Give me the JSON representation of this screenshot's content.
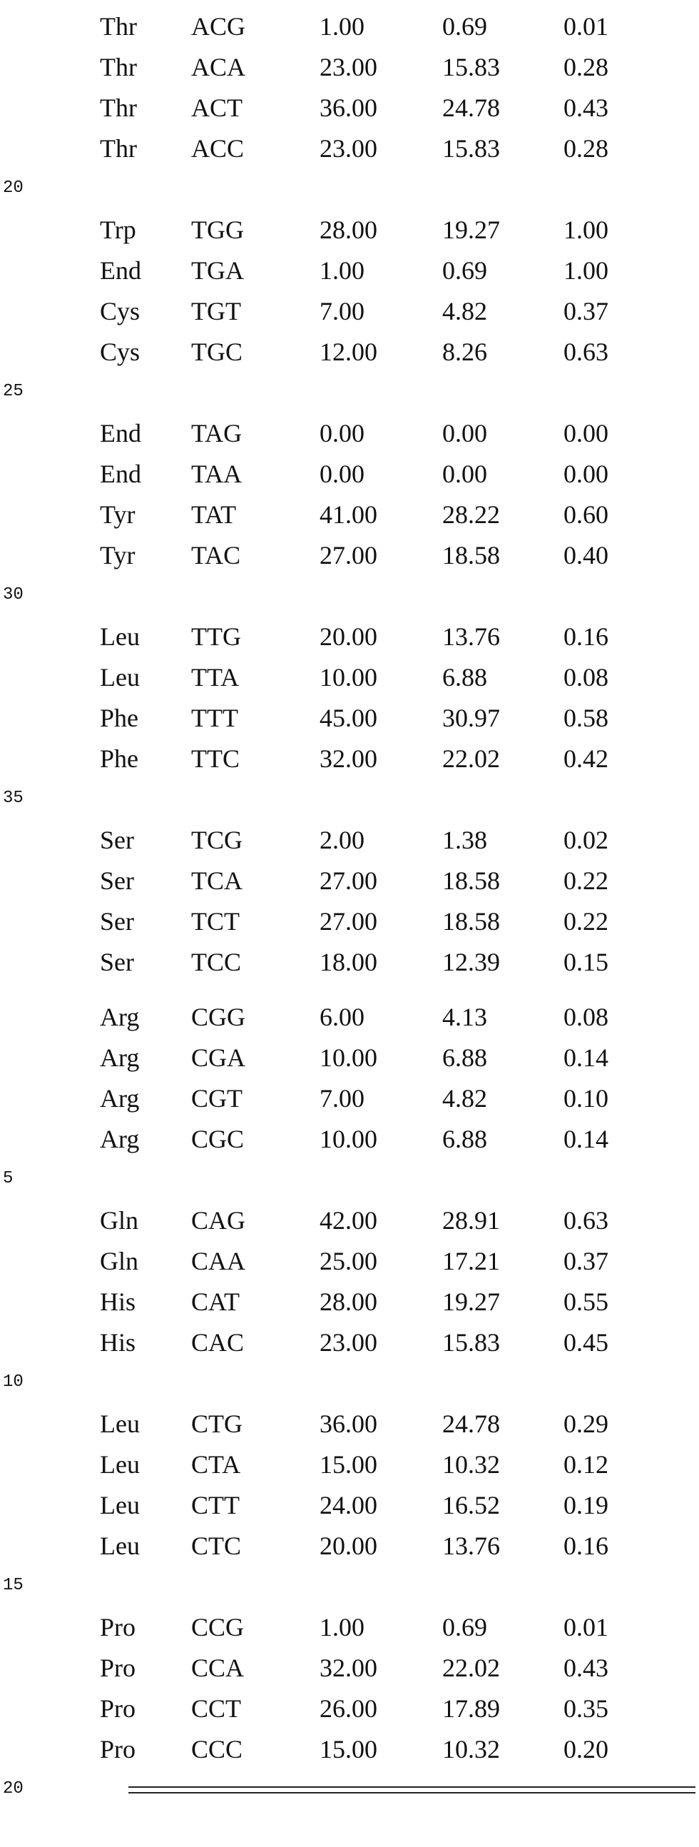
{
  "blocks": [
    {
      "rows": [
        [
          "Thr",
          "ACG",
          "1.00",
          "0.69",
          "0.01"
        ],
        [
          "Thr",
          "ACA",
          "23.00",
          "15.83",
          "0.28"
        ],
        [
          "Thr",
          "ACT",
          "36.00",
          "24.78",
          "0.43"
        ],
        [
          "Thr",
          "ACC",
          "23.00",
          "15.83",
          "0.28"
        ]
      ]
    },
    {
      "line_number": "20",
      "rows": [
        [
          "Trp",
          "TGG",
          "28.00",
          "19.27",
          "1.00"
        ],
        [
          "End",
          "TGA",
          "1.00",
          "0.69",
          "1.00"
        ],
        [
          "Cys",
          "TGT",
          "7.00",
          "4.82",
          "0.37"
        ],
        [
          "Cys",
          "TGC",
          "12.00",
          "8.26",
          "0.63"
        ]
      ]
    },
    {
      "line_number": "25",
      "rows": [
        [
          "End",
          "TAG",
          "0.00",
          "0.00",
          "0.00"
        ],
        [
          "End",
          "TAA",
          "0.00",
          "0.00",
          "0.00"
        ],
        [
          "Tyr",
          "TAT",
          "41.00",
          "28.22",
          "0.60"
        ],
        [
          "Tyr",
          "TAC",
          "27.00",
          "18.58",
          "0.40"
        ]
      ]
    },
    {
      "line_number": "30",
      "rows": [
        [
          "Leu",
          "TTG",
          "20.00",
          "13.76",
          "0.16"
        ],
        [
          "Leu",
          "TTA",
          "10.00",
          "6.88",
          "0.08"
        ],
        [
          "Phe",
          "TTT",
          "45.00",
          "30.97",
          "0.58"
        ],
        [
          "Phe",
          "TTC",
          "32.00",
          "22.02",
          "0.42"
        ]
      ]
    },
    {
      "line_number": "35",
      "rows": [
        [
          "Ser",
          "TCG",
          "2.00",
          "1.38",
          "0.02"
        ],
        [
          "Ser",
          "TCA",
          "27.00",
          "18.58",
          "0.22"
        ],
        [
          "Ser",
          "TCT",
          "27.00",
          "18.58",
          "0.22"
        ],
        [
          "Ser",
          "TCC",
          "18.00",
          "12.39",
          "0.15"
        ]
      ]
    },
    {
      "rows": [
        [
          "Arg",
          "CGG",
          "6.00",
          "4.13",
          "0.08"
        ],
        [
          "Arg",
          "CGA",
          "10.00",
          "6.88",
          "0.14"
        ],
        [
          "Arg",
          "CGT",
          "7.00",
          "4.82",
          "0.10"
        ],
        [
          "Arg",
          "CGC",
          "10.00",
          "6.88",
          "0.14"
        ]
      ]
    },
    {
      "line_number": "5",
      "rows": [
        [
          "Gln",
          "CAG",
          "42.00",
          "28.91",
          "0.63"
        ],
        [
          "Gln",
          "CAA",
          "25.00",
          "17.21",
          "0.37"
        ],
        [
          "His",
          "CAT",
          "28.00",
          "19.27",
          "0.55"
        ],
        [
          "His",
          "CAC",
          "23.00",
          "15.83",
          "0.45"
        ]
      ]
    },
    {
      "line_number": "10",
      "rows": [
        [
          "Leu",
          "CTG",
          "36.00",
          "24.78",
          "0.29"
        ],
        [
          "Leu",
          "CTA",
          "15.00",
          "10.32",
          "0.12"
        ],
        [
          "Leu",
          "CTT",
          "24.00",
          "16.52",
          "0.19"
        ],
        [
          "Leu",
          "CTC",
          "20.00",
          "13.76",
          "0.16"
        ]
      ]
    },
    {
      "line_number": "15",
      "rows": [
        [
          "Pro",
          "CCG",
          "1.00",
          "0.69",
          "0.01"
        ],
        [
          "Pro",
          "CCA",
          "32.00",
          "22.02",
          "0.43"
        ],
        [
          "Pro",
          "CCT",
          "26.00",
          "17.89",
          "0.35"
        ],
        [
          "Pro",
          "CCC",
          "15.00",
          "10.32",
          "0.20"
        ]
      ]
    }
  ],
  "footer_line_number": "20"
}
